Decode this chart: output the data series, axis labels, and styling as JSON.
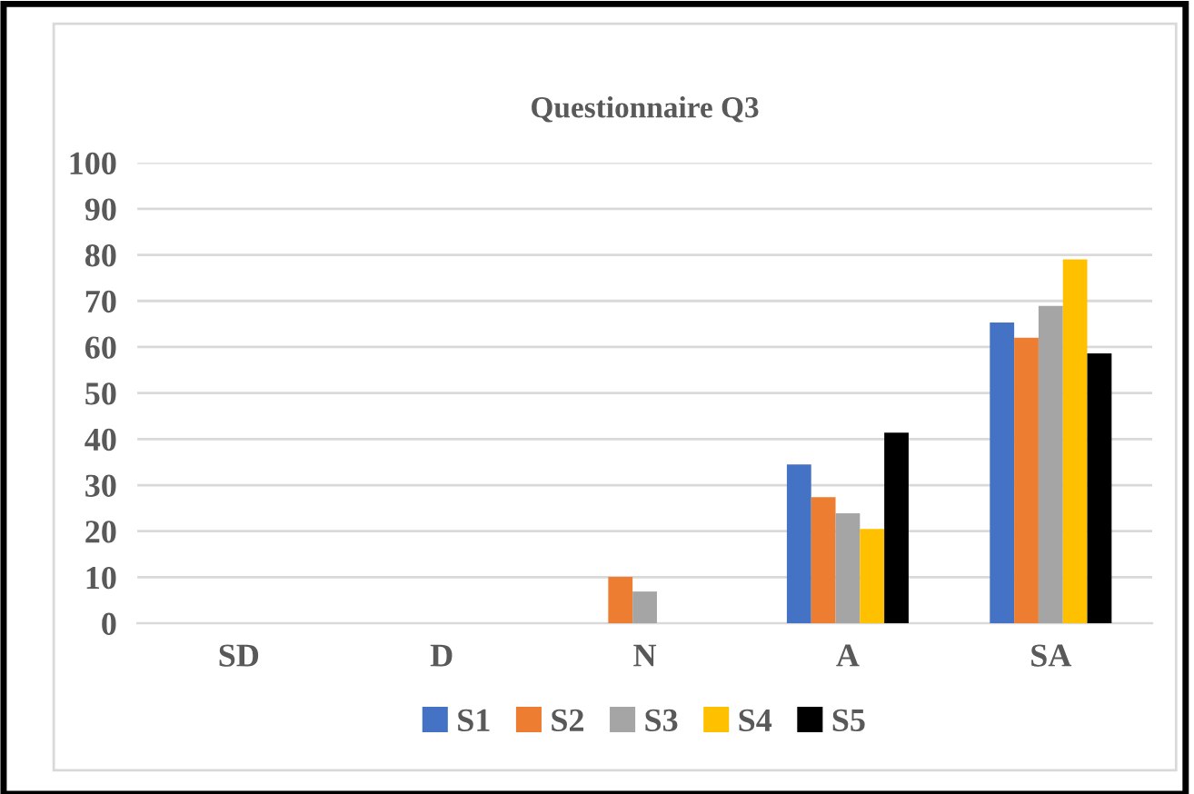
{
  "chart_data": {
    "type": "bar",
    "title": "Questionnaire Q3",
    "categories": [
      "SD",
      "D",
      "N",
      "A",
      "SA"
    ],
    "series": [
      {
        "name": "S1",
        "color": "#4472c4",
        "values": [
          0,
          0,
          0,
          34.5,
          65.3
        ]
      },
      {
        "name": "S2",
        "color": "#ed7d31",
        "values": [
          0,
          0,
          10.1,
          27.4,
          62.0
        ]
      },
      {
        "name": "S3",
        "color": "#a5a5a5",
        "values": [
          0,
          0,
          6.9,
          23.9,
          68.9
        ]
      },
      {
        "name": "S4",
        "color": "#ffc000",
        "values": [
          0,
          0,
          0,
          20.5,
          79.0
        ]
      },
      {
        "name": "S5",
        "color": "#000000",
        "values": [
          0,
          0,
          0,
          41.4,
          58.6
        ]
      }
    ],
    "ylim": [
      0,
      100
    ],
    "yticks": [
      0,
      10,
      20,
      30,
      40,
      50,
      60,
      70,
      80,
      90,
      100
    ],
    "grid": "y",
    "legend": "bottom"
  }
}
